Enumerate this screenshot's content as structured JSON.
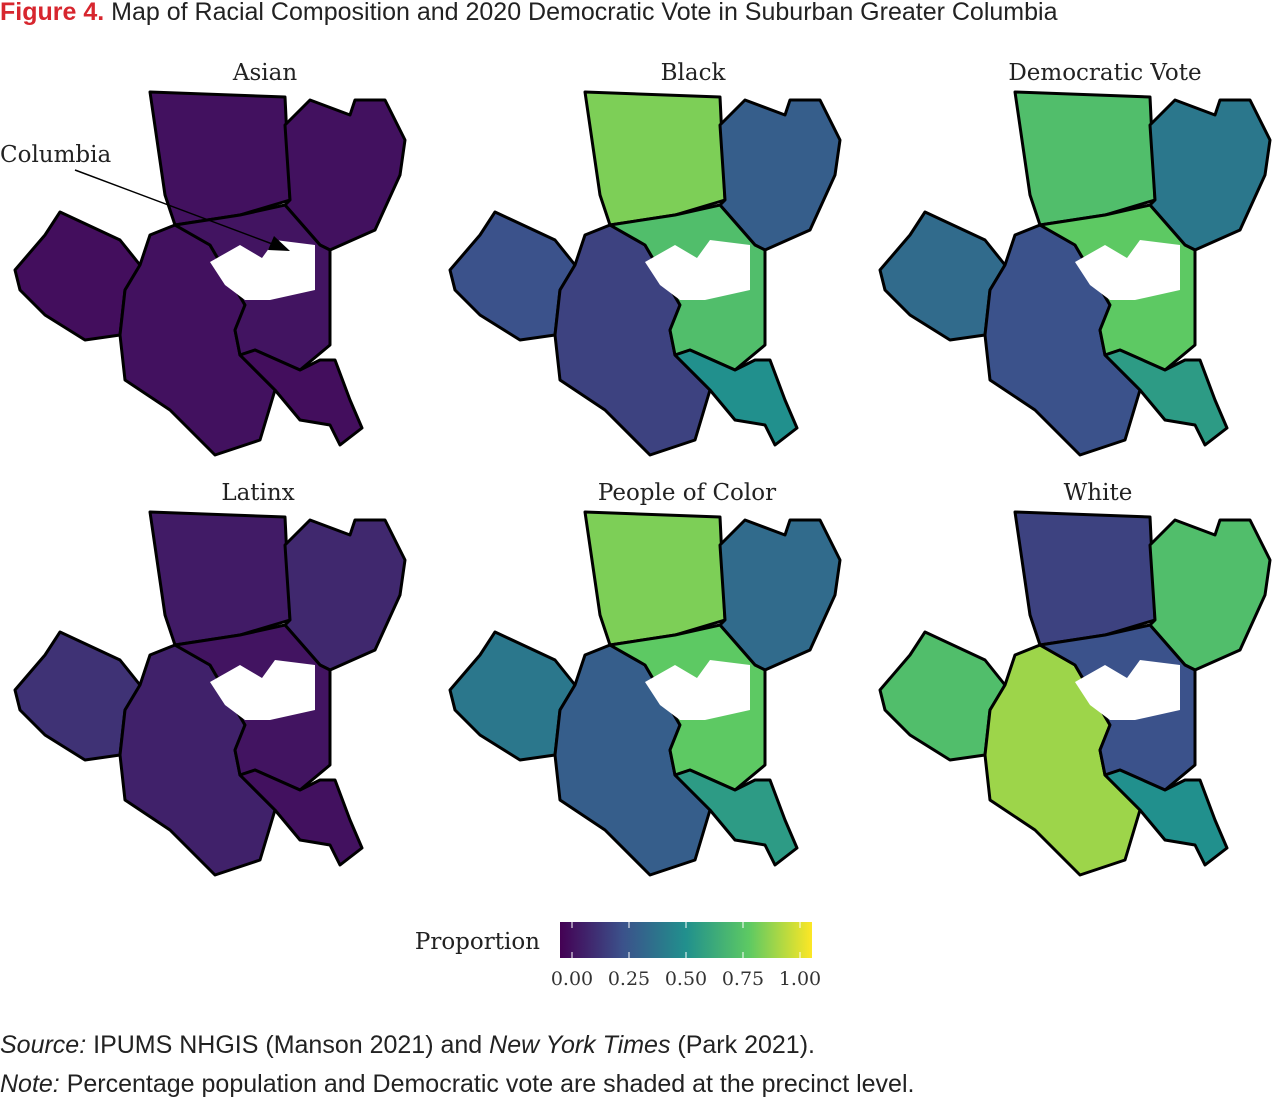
{
  "chart_data": {
    "type": "choropleth",
    "figure_label": "Figure 4.",
    "title": "Map of Racial Composition and 2020 Democratic Vote in Suburban Greater Columbia",
    "annotation": "Columbia",
    "panels": [
      {
        "title": "Asian",
        "values": [
          0.05,
          0.05,
          0.04,
          0.05,
          0.06,
          0.04
        ]
      },
      {
        "title": "Black",
        "values": [
          0.8,
          0.3,
          0.25,
          0.2,
          0.7,
          0.5
        ]
      },
      {
        "title": "Democratic Vote",
        "values": [
          0.7,
          0.4,
          0.35,
          0.25,
          0.75,
          0.55
        ]
      },
      {
        "title": "Latinx",
        "values": [
          0.08,
          0.12,
          0.15,
          0.1,
          0.06,
          0.05
        ]
      },
      {
        "title": "People of Color",
        "values": [
          0.8,
          0.35,
          0.4,
          0.3,
          0.75,
          0.55
        ]
      },
      {
        "title": "White",
        "values": [
          0.2,
          0.7,
          0.7,
          0.85,
          0.25,
          0.5
        ]
      }
    ],
    "legend_title": "Proportion",
    "lim": [
      0,
      1
    ],
    "ticks": [
      {
        "value": 0,
        "label": "0.00"
      },
      {
        "value": 0.25,
        "label": "0.25"
      },
      {
        "value": 0.5,
        "label": "0.50"
      },
      {
        "value": 0.75,
        "label": "0.75"
      },
      {
        "value": 1,
        "label": "1.00"
      }
    ],
    "colors": [
      "#440154",
      "#3b528b",
      "#21908d",
      "#5dc963",
      "#fde725"
    ],
    "source": {
      "label": "Source:",
      "text1": "IPUMS NHGIS (Manson 2021) and",
      "italic": "New York Times",
      "text2": "(Park 2021)."
    },
    "note": {
      "label": "Note:",
      "text": "Percentage population and Democratic vote are shaded at the precinct level."
    }
  }
}
